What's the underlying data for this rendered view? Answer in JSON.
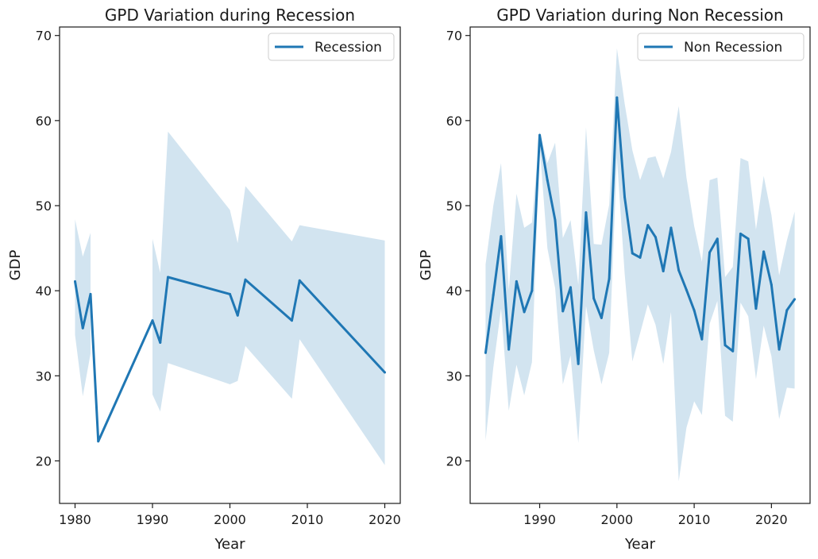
{
  "chart_data": [
    {
      "type": "line",
      "title": "GPD Variation during Recession",
      "xlabel": "Year",
      "ylabel": "GDP",
      "xlim": [
        1978,
        2022
      ],
      "ylim": [
        15,
        71
      ],
      "xticks": [
        1980,
        1990,
        2000,
        2010,
        2020
      ],
      "yticks": [
        20,
        30,
        40,
        50,
        60,
        70
      ],
      "grid": false,
      "legend_position": "top-right",
      "series": [
        {
          "name": "Recession",
          "color": "#1f77b4",
          "band_color": "#1f77b4",
          "x": [
            1980,
            1981,
            1982,
            1983,
            1990,
            1991,
            1992,
            2000,
            2001,
            2002,
            2008,
            2009,
            2020
          ],
          "y": [
            41.1,
            35.6,
            39.6,
            22.3,
            36.5,
            33.9,
            41.6,
            39.6,
            37.1,
            41.3,
            36.5,
            41.2,
            30.4
          ],
          "ci_lower": [
            34.8,
            27.6,
            32.6,
            null,
            27.8,
            25.8,
            31.5,
            29.0,
            29.4,
            33.5,
            27.3,
            34.3,
            19.5
          ],
          "ci_upper": [
            48.4,
            44.0,
            46.8,
            null,
            46.1,
            42.1,
            58.7,
            49.5,
            45.6,
            52.3,
            45.8,
            47.7,
            45.9
          ]
        }
      ]
    },
    {
      "type": "line",
      "title": "GPD Variation during Non Recession",
      "xlabel": "Year",
      "ylabel": "GDP",
      "xlim": [
        1981,
        2025
      ],
      "ylim": [
        15,
        71
      ],
      "xticks": [
        1990,
        2000,
        2010,
        2020
      ],
      "yticks": [
        20,
        30,
        40,
        50,
        60,
        70
      ],
      "grid": false,
      "legend_position": "top-right",
      "series": [
        {
          "name": "Non Recession",
          "color": "#1f77b4",
          "band_color": "#1f77b4",
          "x": [
            1983,
            1984,
            1985,
            1986,
            1987,
            1988,
            1989,
            1990,
            1991,
            1992,
            1993,
            1994,
            1995,
            1996,
            1997,
            1998,
            1999,
            2000,
            2001,
            2002,
            2003,
            2004,
            2005,
            2006,
            2007,
            2008,
            2009,
            2010,
            2011,
            2012,
            2013,
            2014,
            2015,
            2016,
            2017,
            2018,
            2019,
            2020,
            2021,
            2022,
            2023
          ],
          "y": [
            32.7,
            39.5,
            46.4,
            33.1,
            41.1,
            37.5,
            40.0,
            58.3,
            53.0,
            48.3,
            37.6,
            40.4,
            31.4,
            49.2,
            39.1,
            36.8,
            41.4,
            62.7,
            51.0,
            44.4,
            43.9,
            47.7,
            46.3,
            42.3,
            47.4,
            42.4,
            40.1,
            37.7,
            34.3,
            44.5,
            46.1,
            33.6,
            32.9,
            46.7,
            46.1,
            37.9,
            44.6,
            40.7,
            33.1,
            37.7,
            39.0
          ],
          "ci_lower": [
            22.4,
            31.0,
            37.9,
            25.9,
            31.3,
            27.7,
            31.6,
            57.0,
            45.0,
            40.3,
            29.0,
            32.4,
            22.1,
            38.2,
            33.0,
            29.0,
            32.7,
            55.6,
            42.0,
            31.7,
            35.0,
            38.4,
            36.0,
            31.4,
            37.5,
            17.6,
            23.9,
            27.0,
            25.4,
            36.1,
            38.8,
            25.3,
            24.6,
            38.6,
            37.0,
            29.6,
            35.9,
            32.3,
            24.9,
            28.6,
            28.5
          ],
          "ci_upper": [
            43.1,
            50.0,
            55.0,
            40.1,
            51.4,
            47.4,
            48.0,
            58.7,
            55.0,
            57.4,
            46.2,
            48.3,
            40.7,
            59.2,
            45.5,
            45.4,
            50.1,
            68.5,
            62.0,
            56.5,
            53.0,
            55.6,
            55.8,
            53.2,
            56.3,
            61.7,
            53.3,
            47.6,
            43.4,
            53.0,
            53.3,
            41.6,
            42.8,
            55.6,
            55.2,
            47.2,
            53.5,
            48.9,
            41.8,
            45.9,
            49.3
          ]
        }
      ]
    }
  ]
}
